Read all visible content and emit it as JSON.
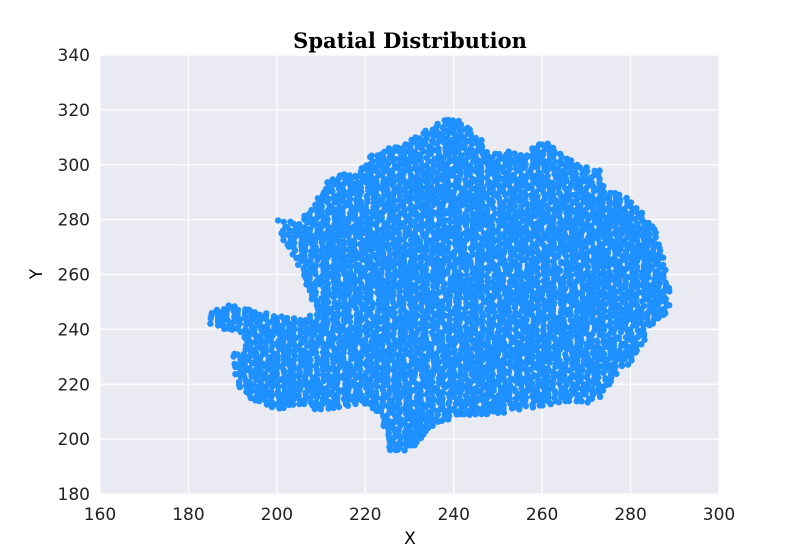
{
  "chart_data": {
    "type": "scatter",
    "title": "Spatial Distribution",
    "xlabel": "X",
    "ylabel": "Y",
    "xlim": [
      160,
      300
    ],
    "ylim": [
      180,
      340
    ],
    "xticks": [
      160,
      180,
      200,
      220,
      240,
      260,
      280,
      300
    ],
    "yticks": [
      180,
      200,
      220,
      240,
      260,
      280,
      300,
      320,
      340
    ],
    "grid": true,
    "legend": "none",
    "colors": {
      "point": "#1e90ff",
      "background": "#eaeaf2",
      "grid": "#ffffff"
    },
    "series": [
      {
        "region_points": [
          [
            184,
            244
          ],
          [
            186,
            247
          ],
          [
            189,
            249
          ],
          [
            193,
            248
          ],
          [
            196,
            246
          ],
          [
            198,
            246
          ],
          [
            200,
            245
          ],
          [
            205,
            245
          ],
          [
            207,
            243
          ],
          [
            208,
            250
          ],
          [
            205,
            263
          ],
          [
            202,
            270
          ],
          [
            200,
            280
          ],
          [
            205,
            279
          ],
          [
            209,
            287
          ],
          [
            212,
            296
          ],
          [
            218,
            297
          ],
          [
            222,
            305
          ],
          [
            228,
            307
          ],
          [
            232,
            311
          ],
          [
            237,
            316
          ],
          [
            241,
            317
          ],
          [
            245,
            312
          ],
          [
            248,
            305
          ],
          [
            252,
            305
          ],
          [
            256,
            304
          ],
          [
            260,
            309
          ],
          [
            264,
            305
          ],
          [
            268,
            300
          ],
          [
            273,
            298
          ],
          [
            274,
            292
          ],
          [
            278,
            289
          ],
          [
            281,
            286
          ],
          [
            283,
            283
          ],
          [
            285,
            278
          ],
          [
            287,
            270
          ],
          [
            288,
            262
          ],
          [
            289,
            255
          ],
          [
            289,
            250
          ],
          [
            288,
            245
          ],
          [
            284,
            240
          ],
          [
            283,
            235
          ],
          [
            280,
            228
          ],
          [
            276,
            222
          ],
          [
            274,
            215
          ],
          [
            270,
            213
          ],
          [
            265,
            213
          ],
          [
            260,
            212
          ],
          [
            253,
            210
          ],
          [
            246,
            208
          ],
          [
            240,
            208
          ],
          [
            235,
            204
          ],
          [
            233,
            199
          ],
          [
            229,
            195
          ],
          [
            225,
            196
          ],
          [
            224,
            205
          ],
          [
            221,
            213
          ],
          [
            215,
            212
          ],
          [
            210,
            210
          ],
          [
            206,
            212
          ],
          [
            200,
            211
          ],
          [
            196,
            213
          ],
          [
            193,
            216
          ],
          [
            191,
            220
          ],
          [
            190,
            225
          ],
          [
            190,
            231
          ],
          [
            193,
            234
          ],
          [
            192,
            238
          ],
          [
            188,
            240
          ],
          [
            185,
            242
          ]
        ],
        "extremes": {
          "x_min": 184,
          "x_max": 289,
          "y_min": 195,
          "y_max": 317
        }
      }
    ]
  }
}
